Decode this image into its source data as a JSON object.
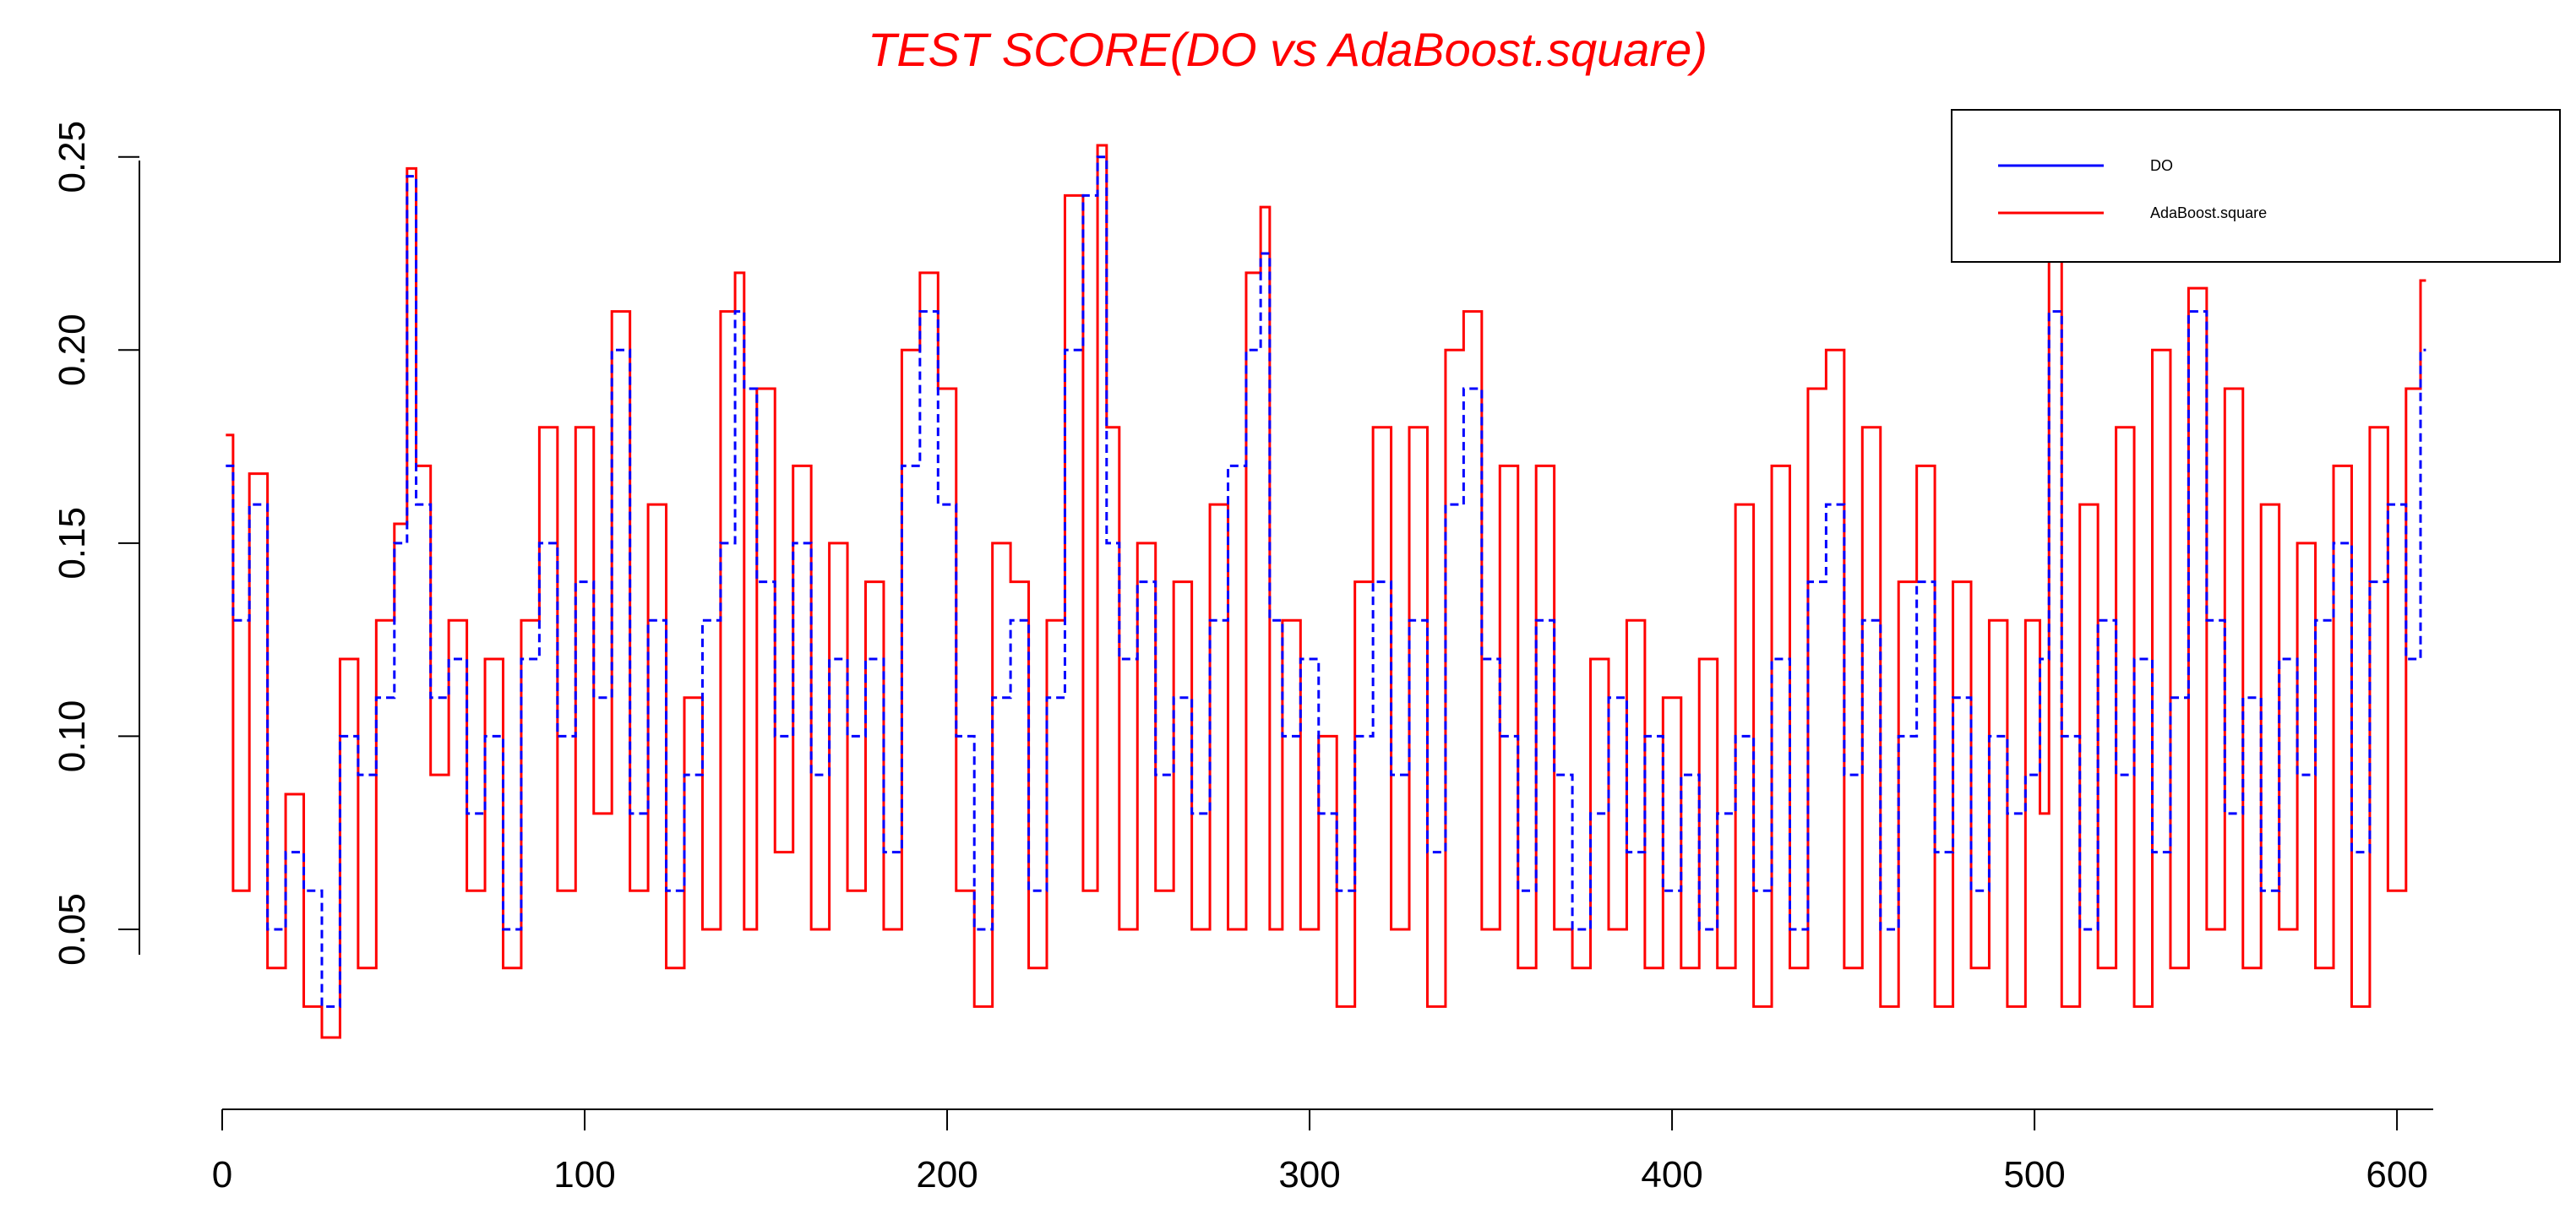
{
  "chart_data": {
    "type": "line",
    "title": "TEST SCORE(DO vs AdaBoost.square)",
    "title_color": "#ff0000",
    "xlabel": "",
    "ylabel": "",
    "xlim": [
      0,
      610
    ],
    "ylim": [
      0.015,
      0.26
    ],
    "x_ticks": [
      0,
      100,
      200,
      300,
      400,
      500,
      600
    ],
    "x_tick_labels": [
      "0",
      "100",
      "200",
      "300",
      "400",
      "500",
      "600"
    ],
    "y_ticks": [
      0.05,
      0.1,
      0.15,
      0.2,
      0.25
    ],
    "y_tick_labels": [
      "0.05",
      "0.10",
      "0.15",
      "0.20",
      "0.25"
    ],
    "grid": false,
    "legend_position": "top-right",
    "series": [
      {
        "name": "DO",
        "color": "#0000ff",
        "style": "solid",
        "x": [
          1,
          5,
          10,
          15,
          20,
          25,
          30,
          35,
          40,
          45,
          50,
          52,
          55,
          60,
          65,
          70,
          75,
          80,
          85,
          90,
          95,
          100,
          105,
          110,
          115,
          120,
          125,
          130,
          135,
          140,
          143,
          145,
          150,
          155,
          160,
          165,
          170,
          175,
          180,
          185,
          190,
          195,
          200,
          205,
          210,
          215,
          220,
          225,
          230,
          235,
          240,
          243,
          245,
          250,
          255,
          260,
          265,
          270,
          275,
          280,
          285,
          288,
          290,
          295,
          300,
          305,
          310,
          315,
          320,
          325,
          330,
          335,
          340,
          345,
          350,
          355,
          360,
          365,
          370,
          375,
          380,
          385,
          390,
          395,
          400,
          405,
          410,
          415,
          420,
          425,
          430,
          435,
          440,
          445,
          450,
          455,
          460,
          465,
          470,
          475,
          480,
          485,
          490,
          495,
          500,
          503,
          505,
          510,
          515,
          520,
          525,
          530,
          535,
          540,
          545,
          550,
          555,
          560,
          565,
          570,
          575,
          580,
          585,
          590,
          595,
          600,
          605,
          608
        ],
        "y": [
          0.17,
          0.13,
          0.16,
          0.05,
          0.07,
          0.06,
          0.03,
          0.1,
          0.09,
          0.11,
          0.15,
          0.245,
          0.16,
          0.11,
          0.12,
          0.08,
          0.1,
          0.05,
          0.12,
          0.15,
          0.1,
          0.14,
          0.11,
          0.2,
          0.08,
          0.13,
          0.06,
          0.09,
          0.13,
          0.15,
          0.21,
          0.19,
          0.14,
          0.1,
          0.15,
          0.09,
          0.12,
          0.1,
          0.12,
          0.07,
          0.17,
          0.21,
          0.16,
          0.1,
          0.05,
          0.11,
          0.13,
          0.06,
          0.11,
          0.2,
          0.24,
          0.25,
          0.15,
          0.12,
          0.14,
          0.09,
          0.11,
          0.08,
          0.13,
          0.17,
          0.2,
          0.225,
          0.13,
          0.1,
          0.12,
          0.08,
          0.06,
          0.1,
          0.14,
          0.09,
          0.13,
          0.07,
          0.16,
          0.19,
          0.12,
          0.1,
          0.06,
          0.13,
          0.09,
          0.05,
          0.08,
          0.11,
          0.07,
          0.1,
          0.06,
          0.09,
          0.05,
          0.08,
          0.1,
          0.06,
          0.12,
          0.05,
          0.14,
          0.16,
          0.09,
          0.13,
          0.05,
          0.1,
          0.14,
          0.07,
          0.11,
          0.06,
          0.1,
          0.08,
          0.09,
          0.12,
          0.21,
          0.1,
          0.05,
          0.13,
          0.09,
          0.12,
          0.07,
          0.11,
          0.21,
          0.13,
          0.08,
          0.11,
          0.06,
          0.12,
          0.09,
          0.13,
          0.15,
          0.07,
          0.14,
          0.16,
          0.12,
          0.2
        ]
      },
      {
        "name": "AdaBoost.square",
        "color": "#ff0000",
        "style": "solid",
        "x": [
          1,
          5,
          10,
          15,
          20,
          25,
          30,
          35,
          40,
          45,
          50,
          52,
          55,
          60,
          65,
          70,
          75,
          80,
          85,
          90,
          95,
          100,
          105,
          110,
          115,
          120,
          125,
          130,
          135,
          140,
          143,
          145,
          150,
          155,
          160,
          165,
          170,
          175,
          180,
          185,
          190,
          195,
          200,
          205,
          210,
          215,
          220,
          225,
          230,
          235,
          240,
          243,
          245,
          250,
          255,
          260,
          265,
          270,
          275,
          280,
          285,
          288,
          290,
          295,
          300,
          305,
          310,
          315,
          320,
          325,
          330,
          335,
          340,
          345,
          350,
          355,
          360,
          365,
          370,
          375,
          380,
          385,
          390,
          395,
          400,
          405,
          410,
          415,
          420,
          425,
          430,
          435,
          440,
          445,
          450,
          455,
          460,
          465,
          470,
          475,
          480,
          485,
          490,
          495,
          500,
          503,
          505,
          510,
          515,
          520,
          525,
          530,
          535,
          540,
          545,
          550,
          555,
          560,
          565,
          570,
          575,
          580,
          585,
          590,
          595,
          600,
          605,
          608
        ],
        "y": [
          0.178,
          0.06,
          0.168,
          0.04,
          0.085,
          0.03,
          0.022,
          0.12,
          0.04,
          0.13,
          0.155,
          0.247,
          0.17,
          0.09,
          0.13,
          0.06,
          0.12,
          0.04,
          0.13,
          0.18,
          0.06,
          0.18,
          0.08,
          0.21,
          0.06,
          0.16,
          0.04,
          0.11,
          0.05,
          0.21,
          0.22,
          0.05,
          0.19,
          0.07,
          0.17,
          0.05,
          0.15,
          0.06,
          0.14,
          0.05,
          0.2,
          0.22,
          0.19,
          0.06,
          0.03,
          0.15,
          0.14,
          0.04,
          0.13,
          0.24,
          0.06,
          0.253,
          0.18,
          0.05,
          0.15,
          0.06,
          0.14,
          0.05,
          0.16,
          0.05,
          0.22,
          0.237,
          0.05,
          0.13,
          0.05,
          0.1,
          0.03,
          0.14,
          0.18,
          0.05,
          0.18,
          0.03,
          0.2,
          0.21,
          0.05,
          0.17,
          0.04,
          0.17,
          0.05,
          0.04,
          0.12,
          0.05,
          0.13,
          0.04,
          0.11,
          0.04,
          0.12,
          0.04,
          0.16,
          0.03,
          0.17,
          0.04,
          0.19,
          0.2,
          0.04,
          0.18,
          0.03,
          0.14,
          0.17,
          0.03,
          0.14,
          0.04,
          0.13,
          0.03,
          0.13,
          0.08,
          0.225,
          0.03,
          0.16,
          0.04,
          0.18,
          0.03,
          0.2,
          0.04,
          0.216,
          0.05,
          0.19,
          0.04,
          0.16,
          0.05,
          0.15,
          0.04,
          0.17,
          0.03,
          0.18,
          0.06,
          0.19,
          0.218
        ]
      }
    ]
  }
}
